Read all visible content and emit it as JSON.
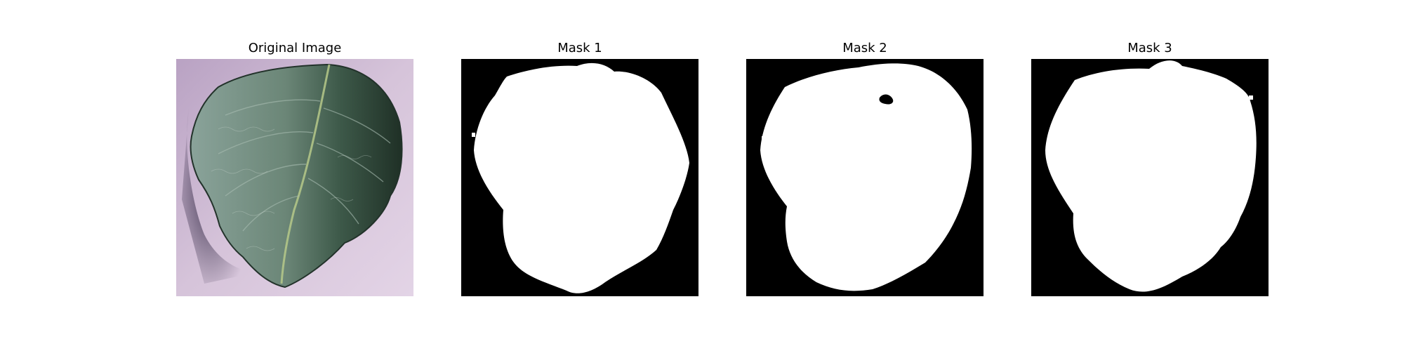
{
  "figure": {
    "panels": [
      {
        "title": "Original Image",
        "kind": "photo",
        "subject": "leaf-photo"
      },
      {
        "title": "Mask 1",
        "kind": "mask"
      },
      {
        "title": "Mask 2",
        "kind": "mask"
      },
      {
        "title": "Mask 3",
        "kind": "mask"
      }
    ]
  },
  "colors": {
    "background_photo": "#cdb8d3",
    "leaf": "#6f8a7d",
    "leaf_dark": "#23362c",
    "mask_foreground": "#ffffff",
    "mask_background": "#000000"
  }
}
